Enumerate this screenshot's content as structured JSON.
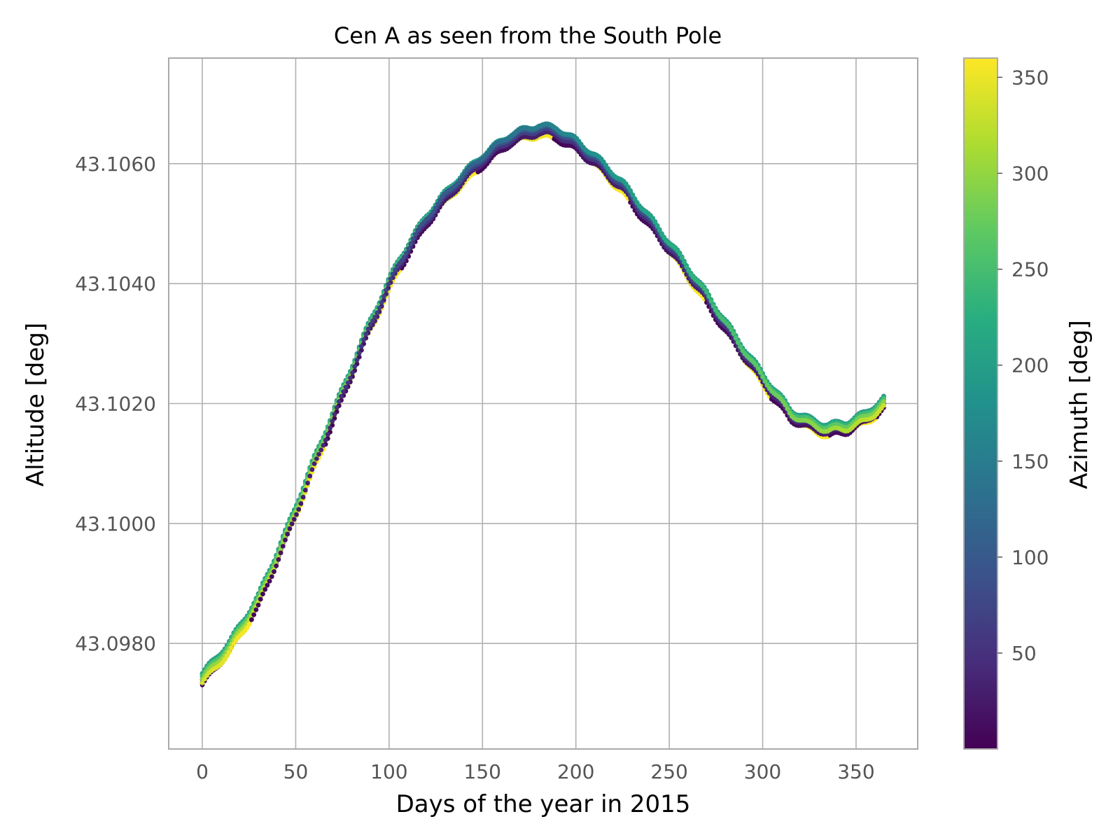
{
  "chart_data": {
    "type": "scatter",
    "title": "Cen A as seen from the South Pole",
    "xlabel": "Days of the year in 2015",
    "ylabel": "Altitude [deg]",
    "xlim": [
      -18,
      383
    ],
    "ylim": [
      43.09624,
      43.10776
    ],
    "xticks": [
      0,
      50,
      100,
      150,
      200,
      250,
      300,
      350
    ],
    "xtick_labels": [
      "0",
      "50",
      "100",
      "150",
      "200",
      "250",
      "300",
      "350"
    ],
    "yticks": [
      43.098,
      43.1,
      43.102,
      43.104,
      43.106
    ],
    "ytick_labels": [
      "43.0980",
      "43.1000",
      "43.1020",
      "43.1040",
      "43.1060"
    ],
    "grid": true,
    "colormap": "viridis",
    "colorbar": {
      "label": "Azimuth [deg]",
      "range": [
        0,
        360
      ],
      "ticks": [
        50,
        100,
        150,
        200,
        250,
        300,
        350
      ],
      "tick_labels": [
        "50",
        "100",
        "150",
        "200",
        "250",
        "300",
        "350"
      ]
    },
    "trend": {
      "x": [
        0,
        15,
        30,
        45,
        60,
        75,
        90,
        105,
        120,
        135,
        150,
        165,
        180,
        190,
        200,
        210,
        225,
        240,
        255,
        270,
        285,
        300,
        315,
        325,
        335,
        345,
        355,
        365
      ],
      "y": [
        43.0973,
        43.09785,
        43.0986,
        43.0997,
        43.1009,
        43.10205,
        43.1032,
        43.1042,
        43.10495,
        43.1055,
        43.10595,
        43.1063,
        43.10645,
        43.1064,
        43.1062,
        43.10595,
        43.1055,
        43.1049,
        43.1043,
        43.10365,
        43.10295,
        43.1023,
        43.1017,
        43.10155,
        43.10145,
        43.1015,
        43.10165,
        43.1019
      ]
    },
    "azimuth_band_offset_deg": 0.0002,
    "daily_oscillation_deg": 4e-05
  }
}
